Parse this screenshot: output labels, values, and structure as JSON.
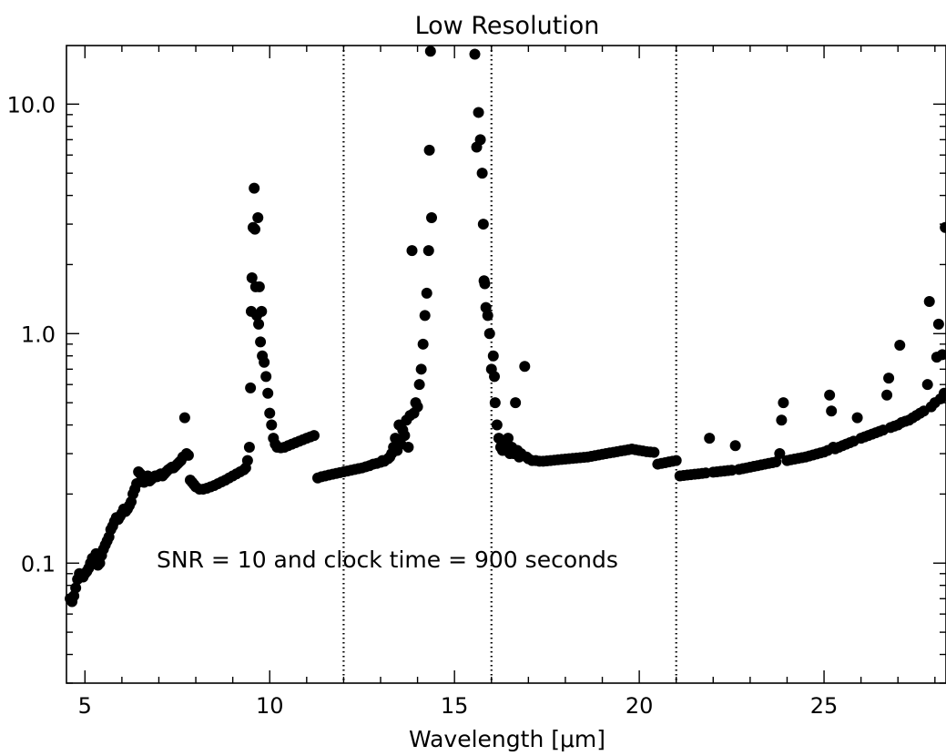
{
  "chart_data": {
    "type": "scatter",
    "title": "Low Resolution",
    "xlabel": "Wavelength [μm]",
    "ylabel": "",
    "xlim": [
      4.5,
      28.3
    ],
    "ylim": [
      0.03,
      18
    ],
    "yscale": "log",
    "grid": false,
    "x_ticks": [
      5,
      10,
      15,
      20,
      25
    ],
    "x_tick_labels": [
      "5",
      "10",
      "15",
      "20",
      "25"
    ],
    "y_ticks": [
      0.1,
      1.0,
      10.0
    ],
    "y_tick_labels": [
      "0.1",
      "1.0",
      "10.0"
    ],
    "vlines": [
      12,
      16,
      21
    ],
    "annotation": "SNR = 10 and clock time = 900 seconds",
    "marker_color": "#000000",
    "series": [
      {
        "points": [
          [
            4.6,
            0.07
          ],
          [
            4.65,
            0.068
          ],
          [
            4.7,
            0.072
          ],
          [
            4.75,
            0.078
          ],
          [
            4.8,
            0.085
          ],
          [
            4.85,
            0.09
          ],
          [
            4.9,
            0.088
          ],
          [
            4.95,
            0.087
          ],
          [
            5.0,
            0.09
          ],
          [
            5.05,
            0.092
          ],
          [
            5.1,
            0.095
          ],
          [
            5.15,
            0.1
          ],
          [
            5.2,
            0.105
          ],
          [
            5.25,
            0.1
          ],
          [
            5.3,
            0.11
          ],
          [
            5.35,
            0.098
          ],
          [
            5.4,
            0.1
          ],
          [
            5.45,
            0.108
          ],
          [
            5.5,
            0.115
          ],
          [
            5.55,
            0.12
          ],
          [
            5.6,
            0.125
          ],
          [
            5.65,
            0.13
          ],
          [
            5.7,
            0.14
          ],
          [
            5.75,
            0.145
          ],
          [
            5.8,
            0.152
          ],
          [
            5.85,
            0.158
          ],
          [
            5.9,
            0.155
          ],
          [
            5.95,
            0.16
          ],
          [
            6.0,
            0.165
          ],
          [
            6.05,
            0.172
          ],
          [
            6.1,
            0.168
          ],
          [
            6.15,
            0.172
          ],
          [
            6.2,
            0.178
          ],
          [
            6.25,
            0.185
          ],
          [
            6.3,
            0.2
          ],
          [
            6.35,
            0.21
          ],
          [
            6.4,
            0.222
          ],
          [
            6.45,
            0.25
          ],
          [
            6.5,
            0.245
          ],
          [
            6.55,
            0.232
          ],
          [
            6.6,
            0.225
          ],
          [
            6.65,
            0.235
          ],
          [
            6.7,
            0.24
          ],
          [
            6.75,
            0.228
          ],
          [
            6.8,
            0.232
          ],
          [
            6.85,
            0.236
          ],
          [
            6.9,
            0.24
          ],
          [
            6.95,
            0.238
          ],
          [
            7.0,
            0.242
          ],
          [
            7.05,
            0.245
          ],
          [
            7.1,
            0.24
          ],
          [
            7.15,
            0.245
          ],
          [
            7.2,
            0.25
          ],
          [
            7.25,
            0.255
          ],
          [
            7.3,
            0.258
          ],
          [
            7.35,
            0.262
          ],
          [
            7.4,
            0.26
          ],
          [
            7.45,
            0.265
          ],
          [
            7.5,
            0.27
          ],
          [
            7.55,
            0.275
          ],
          [
            7.6,
            0.28
          ],
          [
            7.65,
            0.29
          ],
          [
            7.7,
            0.43
          ],
          [
            7.75,
            0.3
          ],
          [
            7.8,
            0.295
          ],
          [
            7.85,
            0.23
          ],
          [
            7.9,
            0.225
          ],
          [
            7.95,
            0.22
          ],
          [
            8.0,
            0.215
          ],
          [
            8.1,
            0.21
          ],
          [
            8.2,
            0.21
          ],
          [
            8.3,
            0.212
          ],
          [
            8.4,
            0.215
          ],
          [
            8.5,
            0.218
          ],
          [
            8.6,
            0.222
          ],
          [
            8.7,
            0.226
          ],
          [
            8.8,
            0.23
          ],
          [
            8.9,
            0.235
          ],
          [
            9.0,
            0.24
          ],
          [
            9.1,
            0.245
          ],
          [
            9.2,
            0.25
          ],
          [
            9.3,
            0.255
          ],
          [
            9.35,
            0.26
          ],
          [
            9.4,
            0.28
          ],
          [
            9.45,
            0.32
          ],
          [
            9.48,
            0.58
          ],
          [
            9.5,
            1.25
          ],
          [
            9.52,
            1.75
          ],
          [
            9.55,
            2.9
          ],
          [
            9.58,
            4.3
          ],
          [
            9.6,
            2.85
          ],
          [
            9.62,
            1.6
          ],
          [
            9.65,
            1.2
          ],
          [
            9.68,
            3.2
          ],
          [
            9.7,
            1.1
          ],
          [
            9.72,
            1.6
          ],
          [
            9.75,
            0.92
          ],
          [
            9.78,
            1.25
          ],
          [
            9.8,
            0.8
          ],
          [
            9.85,
            0.75
          ],
          [
            9.9,
            0.65
          ],
          [
            9.95,
            0.55
          ],
          [
            10.0,
            0.45
          ],
          [
            10.05,
            0.4
          ],
          [
            10.1,
            0.35
          ],
          [
            10.15,
            0.33
          ],
          [
            10.2,
            0.32
          ],
          [
            10.3,
            0.318
          ],
          [
            10.4,
            0.32
          ],
          [
            10.5,
            0.325
          ],
          [
            10.6,
            0.33
          ],
          [
            10.7,
            0.335
          ],
          [
            10.8,
            0.34
          ],
          [
            10.9,
            0.345
          ],
          [
            11.0,
            0.35
          ],
          [
            11.1,
            0.355
          ],
          [
            11.2,
            0.36
          ],
          [
            11.3,
            0.235
          ],
          [
            11.4,
            0.238
          ],
          [
            11.5,
            0.24
          ],
          [
            11.6,
            0.242
          ],
          [
            11.7,
            0.244
          ],
          [
            11.8,
            0.246
          ],
          [
            11.9,
            0.248
          ],
          [
            12.0,
            0.25
          ],
          [
            12.1,
            0.252
          ],
          [
            12.2,
            0.254
          ],
          [
            12.3,
            0.256
          ],
          [
            12.4,
            0.258
          ],
          [
            12.5,
            0.26
          ],
          [
            12.6,
            0.263
          ],
          [
            12.7,
            0.266
          ],
          [
            12.8,
            0.27
          ],
          [
            12.9,
            0.272
          ],
          [
            13.0,
            0.275
          ],
          [
            13.05,
            0.28
          ],
          [
            13.1,
            0.278
          ],
          [
            13.2,
            0.285
          ],
          [
            13.25,
            0.29
          ],
          [
            13.3,
            0.3
          ],
          [
            13.35,
            0.32
          ],
          [
            13.4,
            0.35
          ],
          [
            13.45,
            0.31
          ],
          [
            13.5,
            0.4
          ],
          [
            13.55,
            0.33
          ],
          [
            13.6,
            0.38
          ],
          [
            13.65,
            0.36
          ],
          [
            13.7,
            0.42
          ],
          [
            13.75,
            0.32
          ],
          [
            13.8,
            0.44
          ],
          [
            13.85,
            2.3
          ],
          [
            13.9,
            0.45
          ],
          [
            13.95,
            0.5
          ],
          [
            14.0,
            0.48
          ],
          [
            14.05,
            0.6
          ],
          [
            14.1,
            0.7
          ],
          [
            14.15,
            0.9
          ],
          [
            14.2,
            1.2
          ],
          [
            14.25,
            1.5
          ],
          [
            14.3,
            2.3
          ],
          [
            14.32,
            6.3
          ],
          [
            14.35,
            17.0
          ],
          [
            14.38,
            3.2
          ],
          [
            15.55,
            16.5
          ],
          [
            15.6,
            6.5
          ],
          [
            15.65,
            9.2
          ],
          [
            15.7,
            7.0
          ],
          [
            15.75,
            5.0
          ],
          [
            15.78,
            3.0
          ],
          [
            15.8,
            1.7
          ],
          [
            15.82,
            1.65
          ],
          [
            15.85,
            1.3
          ],
          [
            15.9,
            1.2
          ],
          [
            15.95,
            1.0
          ],
          [
            16.0,
            0.7
          ],
          [
            16.05,
            0.8
          ],
          [
            16.08,
            0.65
          ],
          [
            16.1,
            0.5
          ],
          [
            16.15,
            0.4
          ],
          [
            16.2,
            0.35
          ],
          [
            16.25,
            0.32
          ],
          [
            16.3,
            0.31
          ],
          [
            16.35,
            0.33
          ],
          [
            16.4,
            0.31
          ],
          [
            16.45,
            0.35
          ],
          [
            16.5,
            0.3
          ],
          [
            16.55,
            0.32
          ],
          [
            16.6,
            0.3
          ],
          [
            16.65,
            0.5
          ],
          [
            16.7,
            0.31
          ],
          [
            16.75,
            0.29
          ],
          [
            16.8,
            0.3
          ],
          [
            16.9,
            0.72
          ],
          [
            16.95,
            0.29
          ],
          [
            17.0,
            0.285
          ],
          [
            17.1,
            0.28
          ],
          [
            17.2,
            0.28
          ],
          [
            17.3,
            0.278
          ],
          [
            17.4,
            0.278
          ],
          [
            17.5,
            0.279
          ],
          [
            17.6,
            0.28
          ],
          [
            17.7,
            0.281
          ],
          [
            17.8,
            0.282
          ],
          [
            17.9,
            0.283
          ],
          [
            18.0,
            0.284
          ],
          [
            18.1,
            0.285
          ],
          [
            18.2,
            0.286
          ],
          [
            18.3,
            0.287
          ],
          [
            18.4,
            0.288
          ],
          [
            18.5,
            0.289
          ],
          [
            18.6,
            0.29
          ],
          [
            18.7,
            0.292
          ],
          [
            18.8,
            0.294
          ],
          [
            18.9,
            0.296
          ],
          [
            19.0,
            0.298
          ],
          [
            19.1,
            0.3
          ],
          [
            19.2,
            0.302
          ],
          [
            19.3,
            0.304
          ],
          [
            19.4,
            0.306
          ],
          [
            19.5,
            0.308
          ],
          [
            19.6,
            0.31
          ],
          [
            19.7,
            0.312
          ],
          [
            19.8,
            0.314
          ],
          [
            19.9,
            0.312
          ],
          [
            20.0,
            0.31
          ],
          [
            20.1,
            0.308
          ],
          [
            20.2,
            0.306
          ],
          [
            20.3,
            0.305
          ],
          [
            20.4,
            0.304
          ],
          [
            20.5,
            0.27
          ],
          [
            20.6,
            0.272
          ],
          [
            20.7,
            0.274
          ],
          [
            20.8,
            0.276
          ],
          [
            20.9,
            0.278
          ],
          [
            21.0,
            0.28
          ],
          [
            21.1,
            0.24
          ],
          [
            21.2,
            0.241
          ],
          [
            21.3,
            0.242
          ],
          [
            21.4,
            0.243
          ],
          [
            21.5,
            0.244
          ],
          [
            21.6,
            0.245
          ],
          [
            21.7,
            0.246
          ],
          [
            21.8,
            0.247
          ],
          [
            21.9,
            0.35
          ],
          [
            22.0,
            0.249
          ],
          [
            22.1,
            0.25
          ],
          [
            22.2,
            0.251
          ],
          [
            22.3,
            0.252
          ],
          [
            22.4,
            0.253
          ],
          [
            22.5,
            0.254
          ],
          [
            22.6,
            0.325
          ],
          [
            22.7,
            0.256
          ],
          [
            22.8,
            0.258
          ],
          [
            22.9,
            0.26
          ],
          [
            23.0,
            0.262
          ],
          [
            23.1,
            0.264
          ],
          [
            23.2,
            0.266
          ],
          [
            23.3,
            0.268
          ],
          [
            23.4,
            0.27
          ],
          [
            23.5,
            0.272
          ],
          [
            23.6,
            0.274
          ],
          [
            23.7,
            0.276
          ],
          [
            23.8,
            0.3
          ],
          [
            23.85,
            0.42
          ],
          [
            23.9,
            0.5
          ],
          [
            24.0,
            0.28
          ],
          [
            24.1,
            0.282
          ],
          [
            24.2,
            0.284
          ],
          [
            24.3,
            0.286
          ],
          [
            24.4,
            0.288
          ],
          [
            24.5,
            0.29
          ],
          [
            24.6,
            0.293
          ],
          [
            24.7,
            0.296
          ],
          [
            24.8,
            0.299
          ],
          [
            24.9,
            0.302
          ],
          [
            25.0,
            0.305
          ],
          [
            25.1,
            0.31
          ],
          [
            25.15,
            0.54
          ],
          [
            25.2,
            0.46
          ],
          [
            25.25,
            0.32
          ],
          [
            25.3,
            0.315
          ],
          [
            25.4,
            0.32
          ],
          [
            25.5,
            0.325
          ],
          [
            25.6,
            0.33
          ],
          [
            25.7,
            0.335
          ],
          [
            25.8,
            0.34
          ],
          [
            25.9,
            0.43
          ],
          [
            26.0,
            0.35
          ],
          [
            26.1,
            0.355
          ],
          [
            26.2,
            0.36
          ],
          [
            26.3,
            0.365
          ],
          [
            26.4,
            0.37
          ],
          [
            26.5,
            0.375
          ],
          [
            26.6,
            0.38
          ],
          [
            26.7,
            0.54
          ],
          [
            26.75,
            0.64
          ],
          [
            26.8,
            0.39
          ],
          [
            26.9,
            0.395
          ],
          [
            27.0,
            0.4
          ],
          [
            27.05,
            0.89
          ],
          [
            27.1,
            0.41
          ],
          [
            27.2,
            0.415
          ],
          [
            27.3,
            0.42
          ],
          [
            27.4,
            0.43
          ],
          [
            27.5,
            0.44
          ],
          [
            27.6,
            0.45
          ],
          [
            27.7,
            0.46
          ],
          [
            27.8,
            0.6
          ],
          [
            27.85,
            1.38
          ],
          [
            27.9,
            0.48
          ],
          [
            28.0,
            0.5
          ],
          [
            28.05,
            0.79
          ],
          [
            28.1,
            1.1
          ],
          [
            28.15,
            0.52
          ],
          [
            28.2,
            0.81
          ],
          [
            28.25,
            0.55
          ],
          [
            28.28,
            2.9
          ]
        ]
      }
    ]
  }
}
